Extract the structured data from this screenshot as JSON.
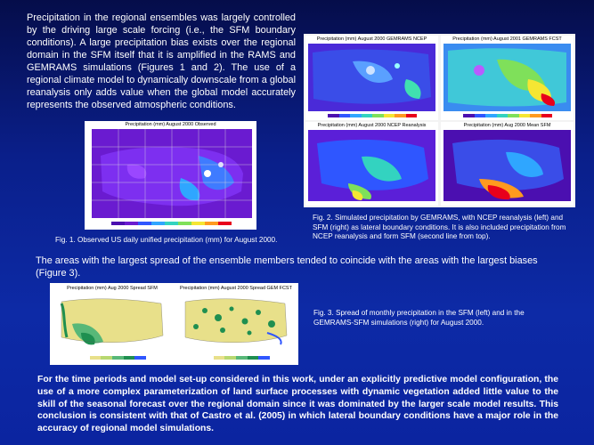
{
  "intro_paragraph": "Precipitation in the regional ensembles was largely controlled by the driving large scale forcing (i.e., the SFM boundary conditions). A large precipitation bias exists over the regional domain in the SFM itself that it is amplified in the RAMS and GEMRAMS simulations (Figures 1 and 2). The use of a regional climate model to dynamically downscale from a global reanalysis only adds value when the global model accurately represents the observed atmospheric conditions.",
  "fig1": {
    "panel_title": "Precipitation (mm) August 2000 Observed",
    "caption": "Fig. 1. Observed US daily unified precipitation (mm) for August 2000."
  },
  "fig2": {
    "panels": [
      "Precipitation (mm) August 2000 GEMRAMS NCEP",
      "Precipitation (mm) August 2001 GEMRAMS FCST",
      "Precipitation (mm) August 2000 NCEP Reanalysis",
      "Precipitation (mm) Aug 2000 Mean SFM"
    ],
    "caption": "Fig. 2. Simulated precipitation by GEMRAMS, with NCEP reanalysis (left) and SFM (right) as lateral boundary conditions. It is also included precipitation from NCEP reanalysis and form SFM (second line from top)."
  },
  "spread_paragraph": "The areas with the largest spread of the ensemble members tended to coincide with the areas with the largest biases (Figure 3).",
  "fig3": {
    "panels": [
      "Precipitation (mm) Aug 2000 Spread SFM",
      "Precipitation (mm) August 2000 Spread GEM FCST"
    ],
    "caption": "Fig. 3. Spread of monthly precipitation in the SFM (left) and in the GEMRAMS-SFM simulations (right) for August 2000."
  },
  "conclusion_paragraph": "For the time periods and model set-up considered in this work, under an explicitly predictive model configuration, the use of a more complex parameterization of land surface processes with dynamic vegetation added little value to the skill of the seasonal forecast over the regional domain since it was dominated by the larger scale model results. This conclusion is consistent with that of Castro et al. (2005) in which lateral boundary conditions have a major role in the accuracy of regional model simulations.",
  "colors": {
    "background": "#0b24a0",
    "precip_low": "#7b1fd6",
    "precip_mid": "#2fa6ff",
    "precip_high": "#e8001c",
    "spread_low": "#e8e08a",
    "spread_high": "#1f8f50"
  }
}
